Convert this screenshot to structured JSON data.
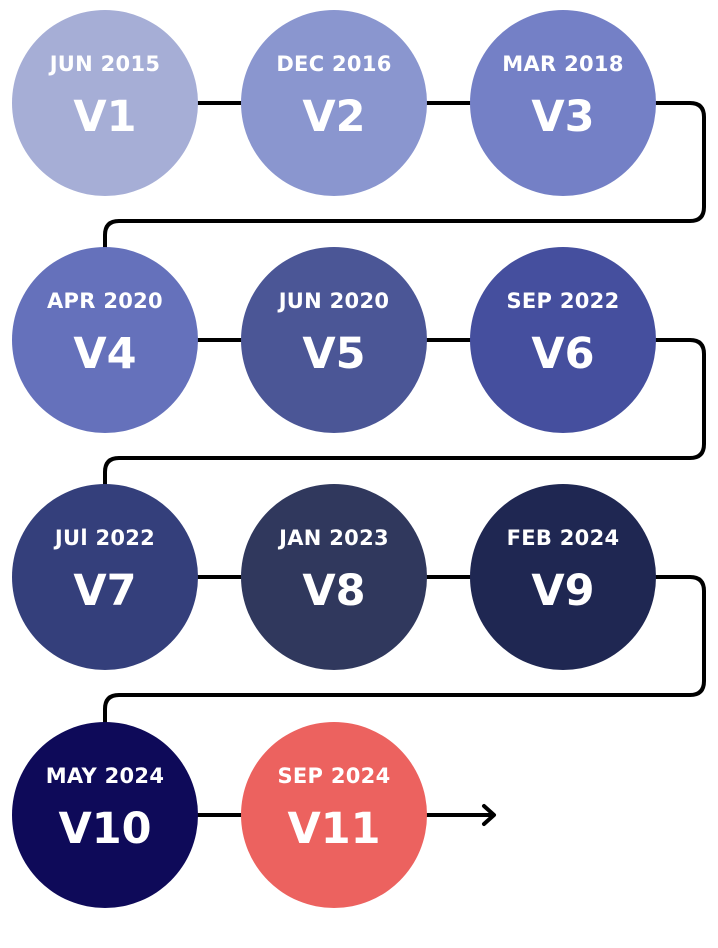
{
  "timeline": {
    "items": [
      {
        "date": "JUN 2015",
        "version": "V1",
        "color": "#a6aed6"
      },
      {
        "date": "DEC 2016",
        "version": "V2",
        "color": "#8a96cf"
      },
      {
        "date": "MAR 2018",
        "version": "V3",
        "color": "#7480c6"
      },
      {
        "date": "APR 2020",
        "version": "V4",
        "color": "#6571bb"
      },
      {
        "date": "JUN 2020",
        "version": "V5",
        "color": "#4b5696"
      },
      {
        "date": "SEP 2022",
        "version": "V6",
        "color": "#454f9e"
      },
      {
        "date": "JUl 2022",
        "version": "V7",
        "color": "#343f7b"
      },
      {
        "date": "JAN 2023",
        "version": "V8",
        "color": "#30385d"
      },
      {
        "date": "FEB 2024",
        "version": "V9",
        "color": "#1f2752"
      },
      {
        "date": "MAY 2024",
        "version": "V10",
        "color": "#0e0a59"
      },
      {
        "date": "SEP 2024",
        "version": "V11",
        "color": "#ec625f"
      }
    ]
  }
}
